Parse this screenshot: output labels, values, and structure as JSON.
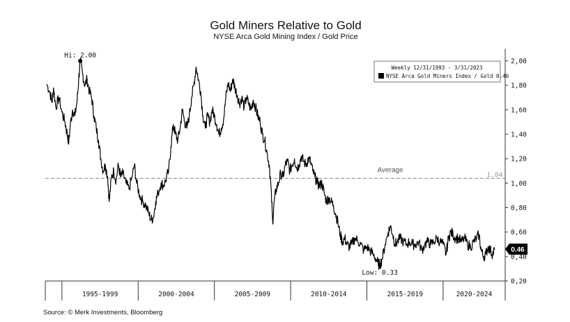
{
  "chart_data": {
    "type": "line",
    "title": "Gold Miners Relative to Gold",
    "subtitle": "NYSE Arca Gold Mining Index / Gold Price",
    "x_range": [
      "1993-12-31",
      "2023-03-31"
    ],
    "ylim": [
      0.2,
      2.1
    ],
    "y_ticks": [
      0.2,
      0.4,
      0.6,
      0.8,
      1.0,
      1.2,
      1.4,
      1.6,
      1.8,
      2.0
    ],
    "y_tick_labels": [
      "0,20",
      "0,40",
      "0,60",
      "0,80",
      "1,00",
      "1,20",
      "1,40",
      "1,60",
      "1,80",
      "2,00"
    ],
    "x_period_labels": [
      "1995-1999",
      "2000-2004",
      "2005-2009",
      "2010-2014",
      "2015-2019",
      "2020-2024"
    ],
    "x_boundaries": [
      1995,
      2000,
      2005,
      2010,
      2015,
      2020
    ],
    "grid": false,
    "legend_position": "top-right",
    "legend": {
      "header": "Weekly 12/31/1993 - 3/31/2023",
      "entry": "NYSE Arca Gold Miners Index / Gold 0.46"
    },
    "average": {
      "label": "Average",
      "value": 1.04,
      "value_label": "1.04"
    },
    "last_value": {
      "value": 0.46,
      "label": "0.46"
    },
    "annotations": [
      {
        "text": "Hi: 2.00",
        "x": 1996.2,
        "y": 2.0
      },
      {
        "text": "Low: 0.33",
        "x": 2015.85,
        "y": 0.33
      }
    ],
    "series": [
      {
        "values": [
          [
            1994.0,
            1.81
          ],
          [
            1994.2,
            1.75
          ],
          [
            1994.35,
            1.66
          ],
          [
            1994.45,
            1.78
          ],
          [
            1994.6,
            1.62
          ],
          [
            1994.8,
            1.7
          ],
          [
            1995.0,
            1.58
          ],
          [
            1995.2,
            1.5
          ],
          [
            1995.35,
            1.4
          ],
          [
            1995.45,
            1.33
          ],
          [
            1995.55,
            1.48
          ],
          [
            1995.7,
            1.6
          ],
          [
            1995.85,
            1.55
          ],
          [
            1996.0,
            1.68
          ],
          [
            1996.1,
            1.85
          ],
          [
            1996.2,
            2.0
          ],
          [
            1996.35,
            1.9
          ],
          [
            1996.5,
            1.8
          ],
          [
            1996.65,
            1.85
          ],
          [
            1996.8,
            1.75
          ],
          [
            1996.95,
            1.7
          ],
          [
            1997.1,
            1.55
          ],
          [
            1997.25,
            1.45
          ],
          [
            1997.4,
            1.35
          ],
          [
            1997.55,
            1.2
          ],
          [
            1997.7,
            1.1
          ],
          [
            1997.85,
            1.15
          ],
          [
            1998.0,
            1.05
          ],
          [
            1998.1,
            0.85
          ],
          [
            1998.25,
            1.05
          ],
          [
            1998.4,
            1.1
          ],
          [
            1998.55,
            1.02
          ],
          [
            1998.7,
            1.15
          ],
          [
            1998.85,
            1.05
          ],
          [
            1999.0,
            1.08
          ],
          [
            1999.2,
            1.0
          ],
          [
            1999.4,
            0.95
          ],
          [
            1999.6,
            1.05
          ],
          [
            1999.75,
            1.15
          ],
          [
            1999.9,
            1.0
          ],
          [
            2000.1,
            0.9
          ],
          [
            2000.3,
            0.85
          ],
          [
            2000.5,
            0.82
          ],
          [
            2000.7,
            0.75
          ],
          [
            2000.85,
            0.7
          ],
          [
            2001.0,
            0.72
          ],
          [
            2001.15,
            0.85
          ],
          [
            2001.3,
            0.92
          ],
          [
            2001.5,
            1.0
          ],
          [
            2001.65,
            0.98
          ],
          [
            2001.8,
            1.02
          ],
          [
            2002.0,
            1.1
          ],
          [
            2002.15,
            1.3
          ],
          [
            2002.3,
            1.48
          ],
          [
            2002.45,
            1.4
          ],
          [
            2002.6,
            1.35
          ],
          [
            2002.75,
            1.45
          ],
          [
            2002.9,
            1.6
          ],
          [
            2003.05,
            1.5
          ],
          [
            2003.2,
            1.45
          ],
          [
            2003.35,
            1.55
          ],
          [
            2003.5,
            1.7
          ],
          [
            2003.65,
            1.8
          ],
          [
            2003.8,
            1.95
          ],
          [
            2003.95,
            1.85
          ],
          [
            2004.1,
            1.75
          ],
          [
            2004.25,
            1.55
          ],
          [
            2004.4,
            1.45
          ],
          [
            2004.55,
            1.55
          ],
          [
            2004.7,
            1.5
          ],
          [
            2004.85,
            1.6
          ],
          [
            2005.0,
            1.55
          ],
          [
            2005.15,
            1.48
          ],
          [
            2005.3,
            1.4
          ],
          [
            2005.45,
            1.45
          ],
          [
            2005.6,
            1.52
          ],
          [
            2005.75,
            1.7
          ],
          [
            2005.9,
            1.82
          ],
          [
            2006.05,
            1.75
          ],
          [
            2006.2,
            1.85
          ],
          [
            2006.35,
            1.78
          ],
          [
            2006.5,
            1.72
          ],
          [
            2006.65,
            1.65
          ],
          [
            2006.8,
            1.7
          ],
          [
            2006.95,
            1.62
          ],
          [
            2007.1,
            1.7
          ],
          [
            2007.25,
            1.65
          ],
          [
            2007.4,
            1.6
          ],
          [
            2007.55,
            1.68
          ],
          [
            2007.7,
            1.62
          ],
          [
            2007.85,
            1.55
          ],
          [
            2008.0,
            1.5
          ],
          [
            2008.15,
            1.4
          ],
          [
            2008.3,
            1.35
          ],
          [
            2008.45,
            1.25
          ],
          [
            2008.6,
            1.15
          ],
          [
            2008.72,
            0.95
          ],
          [
            2008.82,
            0.68
          ],
          [
            2008.92,
            0.85
          ],
          [
            2009.05,
            0.95
          ],
          [
            2009.2,
            1.0
          ],
          [
            2009.35,
            1.08
          ],
          [
            2009.5,
            1.05
          ],
          [
            2009.65,
            1.15
          ],
          [
            2009.8,
            1.18
          ],
          [
            2009.95,
            1.1
          ],
          [
            2010.1,
            1.15
          ],
          [
            2010.25,
            1.2
          ],
          [
            2010.4,
            1.12
          ],
          [
            2010.55,
            1.15
          ],
          [
            2010.7,
            1.22
          ],
          [
            2010.85,
            1.18
          ],
          [
            2011.0,
            1.15
          ],
          [
            2011.15,
            1.2
          ],
          [
            2011.3,
            1.18
          ],
          [
            2011.45,
            1.1
          ],
          [
            2011.6,
            1.05
          ],
          [
            2011.75,
            1.0
          ],
          [
            2011.9,
            0.98
          ],
          [
            2012.05,
            1.0
          ],
          [
            2012.2,
            0.92
          ],
          [
            2012.35,
            0.85
          ],
          [
            2012.5,
            0.88
          ],
          [
            2012.65,
            0.85
          ],
          [
            2012.8,
            0.82
          ],
          [
            2012.95,
            0.75
          ],
          [
            2013.1,
            0.68
          ],
          [
            2013.25,
            0.58
          ],
          [
            2013.4,
            0.52
          ],
          [
            2013.55,
            0.55
          ],
          [
            2013.7,
            0.5
          ],
          [
            2013.85,
            0.48
          ],
          [
            2014.0,
            0.5
          ],
          [
            2014.2,
            0.55
          ],
          [
            2014.4,
            0.53
          ],
          [
            2014.6,
            0.5
          ],
          [
            2014.8,
            0.45
          ],
          [
            2015.0,
            0.48
          ],
          [
            2015.2,
            0.45
          ],
          [
            2015.4,
            0.42
          ],
          [
            2015.6,
            0.38
          ],
          [
            2015.75,
            0.34
          ],
          [
            2015.85,
            0.33
          ],
          [
            2016.0,
            0.38
          ],
          [
            2016.2,
            0.5
          ],
          [
            2016.4,
            0.6
          ],
          [
            2016.55,
            0.65
          ],
          [
            2016.7,
            0.58
          ],
          [
            2016.85,
            0.5
          ],
          [
            2017.0,
            0.52
          ],
          [
            2017.2,
            0.55
          ],
          [
            2017.4,
            0.52
          ],
          [
            2017.6,
            0.5
          ],
          [
            2017.8,
            0.52
          ],
          [
            2018.0,
            0.5
          ],
          [
            2018.2,
            0.5
          ],
          [
            2018.4,
            0.52
          ],
          [
            2018.6,
            0.45
          ],
          [
            2018.8,
            0.5
          ],
          [
            2019.0,
            0.52
          ],
          [
            2019.2,
            0.5
          ],
          [
            2019.4,
            0.52
          ],
          [
            2019.6,
            0.55
          ],
          [
            2019.8,
            0.52
          ],
          [
            2020.0,
            0.5
          ],
          [
            2020.2,
            0.42
          ],
          [
            2020.35,
            0.55
          ],
          [
            2020.5,
            0.6
          ],
          [
            2020.65,
            0.58
          ],
          [
            2020.8,
            0.55
          ],
          [
            2021.0,
            0.55
          ],
          [
            2021.2,
            0.52
          ],
          [
            2021.4,
            0.55
          ],
          [
            2021.6,
            0.5
          ],
          [
            2021.8,
            0.48
          ],
          [
            2022.0,
            0.52
          ],
          [
            2022.2,
            0.55
          ],
          [
            2022.35,
            0.58
          ],
          [
            2022.5,
            0.45
          ],
          [
            2022.65,
            0.4
          ],
          [
            2022.8,
            0.42
          ],
          [
            2022.95,
            0.48
          ],
          [
            2023.1,
            0.45
          ],
          [
            2023.25,
            0.42
          ],
          [
            2023.4,
            0.46
          ]
        ]
      }
    ]
  },
  "source": "Source: © Merk Investments, Bloomberg"
}
